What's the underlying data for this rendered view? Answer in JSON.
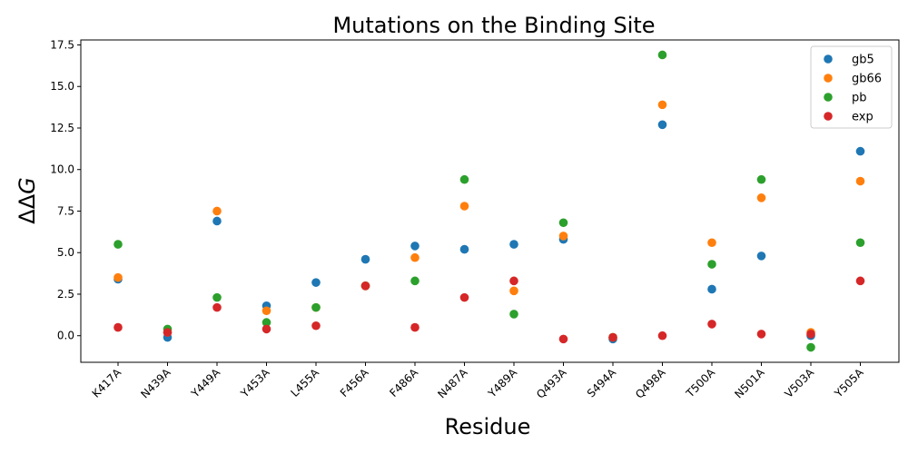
{
  "chart_data": {
    "type": "scatter",
    "title": "Mutations on the Binding Site",
    "xlabel": "Residue",
    "ylabel": "ΔΔG",
    "categories": [
      "K417A",
      "N439A",
      "Y449A",
      "Y453A",
      "L455A",
      "F456A",
      "F486A",
      "N487A",
      "Y489A",
      "Q493A",
      "S494A",
      "Q498A",
      "T500A",
      "N501A",
      "V503A",
      "Y505A"
    ],
    "ylim": [
      -1.6,
      17.8
    ],
    "yticks": [
      0.0,
      2.5,
      5.0,
      7.5,
      10.0,
      12.5,
      15.0,
      17.5
    ],
    "ytick_labels": [
      "0.0",
      "2.5",
      "5.0",
      "7.5",
      "10.0",
      "12.5",
      "15.0",
      "17.5"
    ],
    "grid": false,
    "legend_position": "top-right",
    "series": [
      {
        "name": "gb5",
        "color": "#1f77b4",
        "values": [
          3.4,
          -0.1,
          6.9,
          1.8,
          3.2,
          4.6,
          5.4,
          5.2,
          5.5,
          5.8,
          -0.2,
          12.7,
          2.8,
          4.8,
          0.0,
          11.1
        ]
      },
      {
        "name": "gb66",
        "color": "#ff7f0e",
        "values": [
          3.5,
          0.2,
          7.5,
          1.5,
          1.7,
          3.0,
          4.7,
          7.8,
          2.7,
          6.0,
          -0.1,
          13.9,
          5.6,
          8.3,
          0.2,
          9.3
        ]
      },
      {
        "name": "pb",
        "color": "#2ca02c",
        "values": [
          5.5,
          0.4,
          2.3,
          0.8,
          1.7,
          3.0,
          3.3,
          9.4,
          1.3,
          6.8,
          -0.1,
          16.9,
          4.3,
          9.4,
          -0.7,
          5.6
        ]
      },
      {
        "name": "exp",
        "color": "#d62728",
        "values": [
          0.5,
          0.2,
          1.7,
          0.4,
          0.6,
          3.0,
          0.5,
          2.3,
          3.3,
          -0.2,
          -0.1,
          0.0,
          0.7,
          0.1,
          0.1,
          3.3
        ]
      }
    ]
  }
}
